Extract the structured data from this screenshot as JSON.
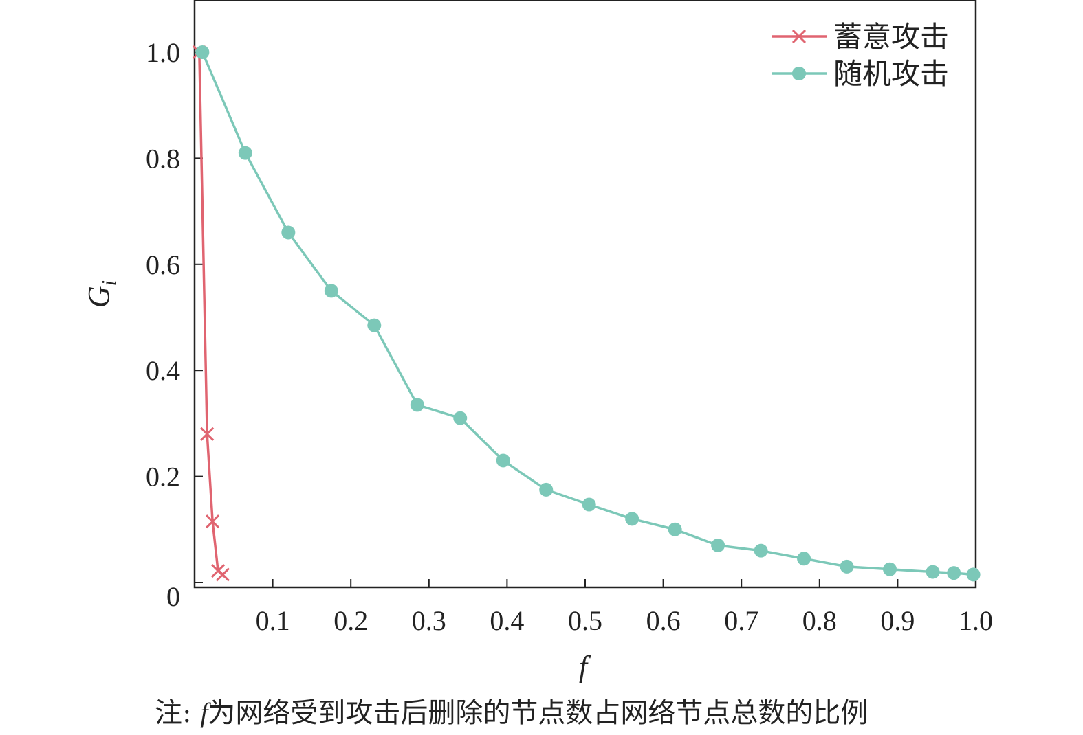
{
  "chart_data": {
    "type": "line",
    "xlabel": "f",
    "ylabel_main": "G",
    "ylabel_sub": "i",
    "xlim": [
      0,
      1.0
    ],
    "ylim": [
      0,
      1.1
    ],
    "x_ticks": [
      0.1,
      0.2,
      0.3,
      0.4,
      0.5,
      0.6,
      0.7,
      0.8,
      0.9,
      1.0
    ],
    "x_tick_labels": [
      "0.1",
      "0.2",
      "0.3",
      "0.4",
      "0.5",
      "0.6",
      "0.7",
      "0.8",
      "0.9",
      "1.0"
    ],
    "y_ticks": [
      0,
      0.2,
      0.4,
      0.6,
      0.8,
      1.0
    ],
    "y_tick_labels": [
      "0",
      "0.2",
      "0.4",
      "0.6",
      "0.8",
      "1.0"
    ],
    "legend_position": "top-right",
    "series": [
      {
        "name": "蓄意攻击",
        "color": "#e06470",
        "marker": "x",
        "x": [
          0.006,
          0.016,
          0.023,
          0.03,
          0.036
        ],
        "y": [
          1.0,
          0.28,
          0.115,
          0.022,
          0.015
        ]
      },
      {
        "name": "随机攻击",
        "color": "#7cc8b8",
        "marker": "circle",
        "x": [
          0.01,
          0.065,
          0.12,
          0.175,
          0.23,
          0.285,
          0.34,
          0.395,
          0.45,
          0.505,
          0.56,
          0.615,
          0.67,
          0.725,
          0.78,
          0.835,
          0.89,
          0.945,
          0.972,
          0.997
        ],
        "y": [
          1.0,
          0.81,
          0.66,
          0.55,
          0.485,
          0.335,
          0.31,
          0.23,
          0.175,
          0.147,
          0.12,
          0.1,
          0.07,
          0.06,
          0.045,
          0.03,
          0.025,
          0.02,
          0.018,
          0.015
        ]
      }
    ]
  },
  "caption": {
    "prefix": "注: ",
    "variable": "f",
    "text": "为网络受到攻击后删除的节点数占网络节点总数的比例"
  }
}
